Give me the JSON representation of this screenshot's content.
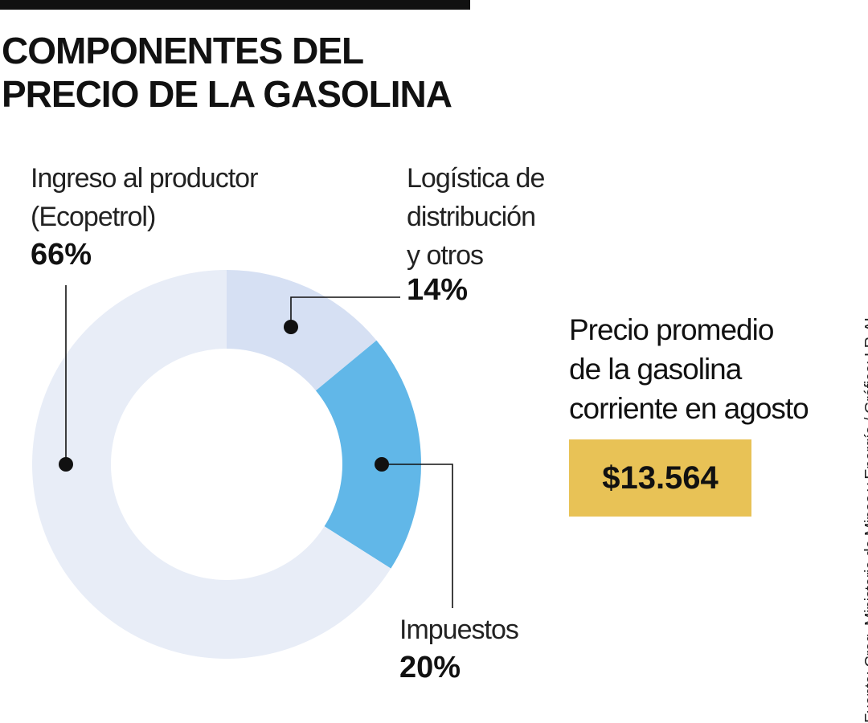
{
  "title": {
    "line1": "COMPONENTES DEL",
    "line2": "PRECIO DE LA GASOLINA"
  },
  "chart_data": {
    "type": "pie",
    "variant": "donut",
    "title": "COMPONENTES DEL PRECIO DE LA GASOLINA",
    "slices": [
      {
        "name": "Logística de\ndistribución\ny otros",
        "value": 14,
        "label": "14%",
        "color": "#d6e0f3"
      },
      {
        "name": "Impuestos",
        "value": 20,
        "label": "20%",
        "color": "#61b7e8"
      },
      {
        "name": "Ingreso al productor\n(Ecopetrol)",
        "value": 66,
        "label": "66%",
        "color": "#e8edf7"
      }
    ],
    "start": "12 o'clock",
    "direction": "clockwise"
  },
  "price": {
    "caption": "Precio promedio\nde la gasolina\ncorriente en agosto",
    "value": "$13.564",
    "box_color": "#e8c256"
  },
  "source": "Fuente: Creg, Ministerio de Minas y Energía / Gráfico: LR-AL"
}
